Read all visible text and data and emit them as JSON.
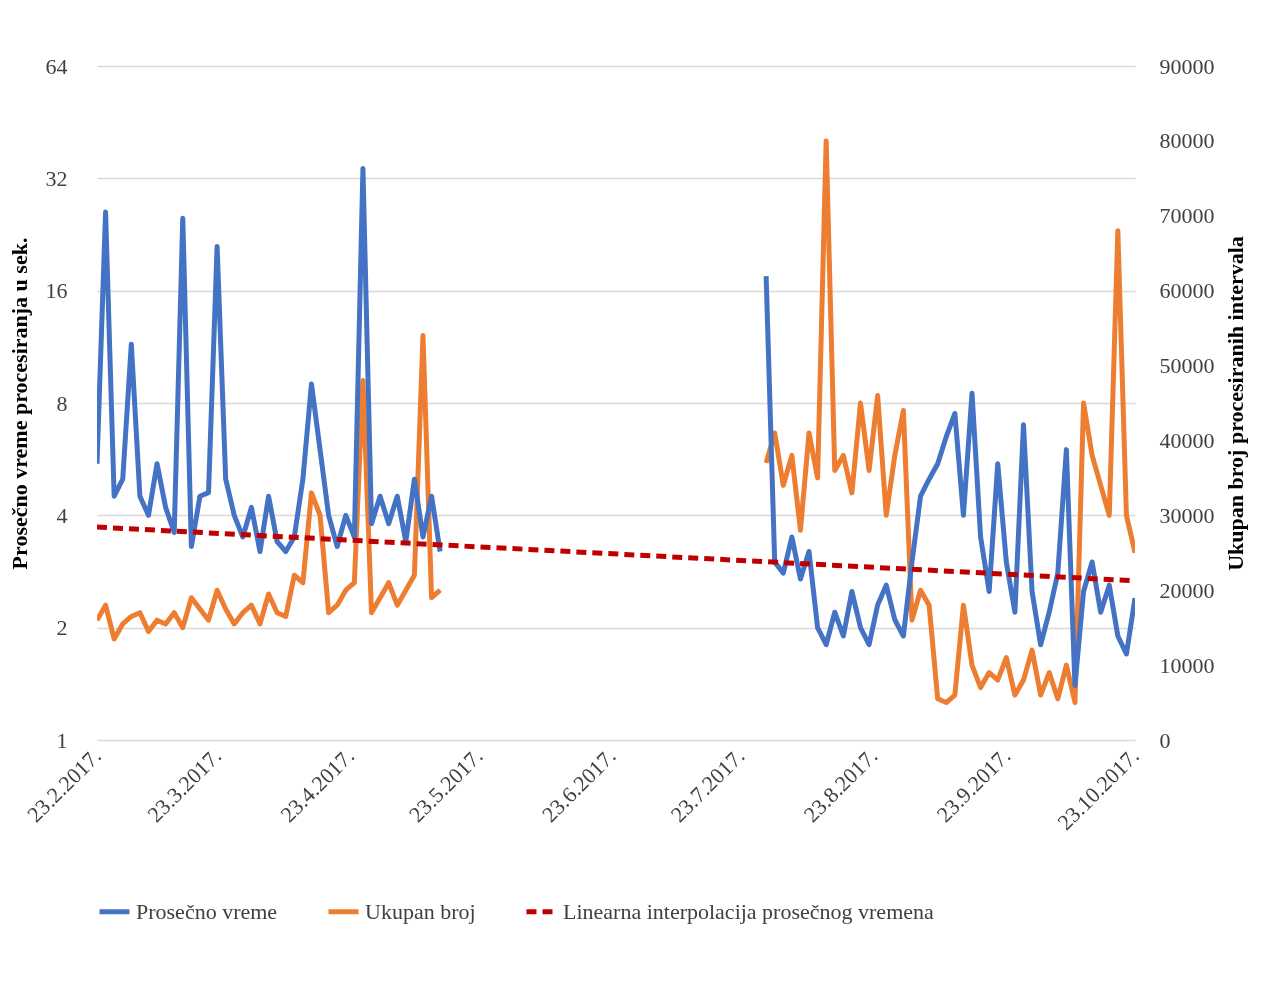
{
  "chart_data": {
    "type": "line",
    "ylabel": "Prosečno vreme procesiranja u sek.",
    "y2label": "Ukupan broj procesiranih intervala",
    "x": [
      "2017-02-23",
      "2017-02-25",
      "2017-02-27",
      "2017-03-01",
      "2017-03-03",
      "2017-03-05",
      "2017-03-07",
      "2017-03-09",
      "2017-03-11",
      "2017-03-13",
      "2017-03-15",
      "2017-03-17",
      "2017-03-19",
      "2017-03-21",
      "2017-03-23",
      "2017-03-25",
      "2017-03-27",
      "2017-03-29",
      "2017-03-31",
      "2017-04-02",
      "2017-04-04",
      "2017-04-06",
      "2017-04-08",
      "2017-04-10",
      "2017-04-12",
      "2017-04-14",
      "2017-04-16",
      "2017-04-18",
      "2017-04-20",
      "2017-04-22",
      "2017-04-24",
      "2017-04-26",
      "2017-04-28",
      "2017-04-30",
      "2017-05-02",
      "2017-05-04",
      "2017-05-06",
      "2017-05-08",
      "2017-05-10",
      "2017-05-12",
      "2017-05-14",
      "2017-06-20",
      "2017-07-29",
      "2017-07-31",
      "2017-08-02",
      "2017-08-04",
      "2017-08-06",
      "2017-08-08",
      "2017-08-10",
      "2017-08-12",
      "2017-08-14",
      "2017-08-16",
      "2017-08-18",
      "2017-08-20",
      "2017-08-22",
      "2017-08-24",
      "2017-08-26",
      "2017-08-28",
      "2017-08-30",
      "2017-09-01",
      "2017-09-03",
      "2017-09-05",
      "2017-09-07",
      "2017-09-09",
      "2017-09-11",
      "2017-09-13",
      "2017-09-15",
      "2017-09-17",
      "2017-09-19",
      "2017-09-21",
      "2017-09-23",
      "2017-09-25",
      "2017-09-27",
      "2017-09-29",
      "2017-10-01",
      "2017-10-03",
      "2017-10-05",
      "2017-10-07",
      "2017-10-09",
      "2017-10-11",
      "2017-10-13",
      "2017-10-15",
      "2017-10-17",
      "2017-10-19",
      "2017-10-21",
      "2017-10-23"
    ],
    "series": [
      {
        "name": "Prosečno vreme",
        "color": "#4472c4",
        "type": "line",
        "line_style": "solid",
        "values": [
          5.5,
          26,
          4.5,
          5,
          11.5,
          4.5,
          4,
          5.5,
          4.2,
          3.6,
          25,
          3.3,
          4.5,
          4.6,
          21,
          5,
          4,
          3.5,
          4.2,
          3.2,
          4.5,
          3.4,
          3.2,
          3.5,
          5,
          9,
          6,
          4,
          3.3,
          4,
          3.5,
          34,
          3.8,
          4.5,
          3.8,
          4.5,
          3.4,
          5,
          3.5,
          4.5,
          3.2,
          null,
          17.5,
          3,
          2.8,
          3.5,
          2.7,
          3.2,
          2,
          1.8,
          2.2,
          1.9,
          2.5,
          2,
          1.8,
          2.3,
          2.6,
          2.1,
          1.9,
          3,
          4.5,
          5,
          5.5,
          6.5,
          7.5,
          4,
          8.5,
          3.5,
          2.5,
          5.5,
          3,
          2.2,
          7,
          2.5,
          1.8,
          2.2,
          2.8,
          6,
          1.4,
          2.5,
          3,
          2.2,
          2.6,
          1.9,
          1.7,
          2.4
        ]
      },
      {
        "name": "Ukupan broj",
        "color": "#ed7d31",
        "type": "line",
        "line_style": "solid",
        "axis": "y2",
        "values": [
          16000,
          18000,
          13500,
          15500,
          16500,
          17000,
          14500,
          16000,
          15500,
          17000,
          15000,
          19000,
          17500,
          16000,
          20000,
          17500,
          15500,
          17000,
          18000,
          15500,
          19500,
          17000,
          16500,
          22000,
          21000,
          33000,
          30000,
          17000,
          18000,
          20000,
          21000,
          48000,
          17000,
          19000,
          21000,
          18000,
          20000,
          22000,
          54000,
          19000,
          20000,
          null,
          37000,
          41000,
          34000,
          38000,
          28000,
          41000,
          35000,
          80000,
          36000,
          38000,
          33000,
          45000,
          36000,
          46000,
          30000,
          38000,
          44000,
          16000,
          20000,
          18000,
          5500,
          5000,
          6000,
          18000,
          10000,
          7000,
          9000,
          8000,
          11000,
          6000,
          8000,
          12000,
          6000,
          9000,
          5500,
          10000,
          5000,
          45000,
          38000,
          34000,
          30000,
          68000,
          30000,
          25000
        ]
      },
      {
        "name": "Linearna interpolacija prosečnog vremena",
        "color": "#c00000",
        "type": "line",
        "line_style": "dashed",
        "x": [
          "2017-02-23",
          "2017-10-23"
        ],
        "values": [
          3.72,
          2.67
        ]
      }
    ],
    "xlim": [
      "2017-02-23",
      "2017-10-23"
    ],
    "xticks": [
      {
        "value": "2017-02-23",
        "label": "23.2.2017."
      },
      {
        "value": "2017-03-23",
        "label": "23.3.2017."
      },
      {
        "value": "2017-04-23",
        "label": "23.4.2017."
      },
      {
        "value": "2017-05-23",
        "label": "23.5.2017."
      },
      {
        "value": "2017-06-23",
        "label": "23.6.2017."
      },
      {
        "value": "2017-07-23",
        "label": "23.7.2017."
      },
      {
        "value": "2017-08-23",
        "label": "23.8.2017."
      },
      {
        "value": "2017-09-23",
        "label": "23.9.2017."
      },
      {
        "value": "2017-10-23",
        "label": "23.10.2017."
      }
    ],
    "ylim": [
      1,
      64
    ],
    "yticks": [
      1,
      2,
      4,
      8,
      16,
      32,
      64
    ],
    "log": "y",
    "y2lim": [
      0,
      90000
    ],
    "y2ticks": [
      0,
      10000,
      20000,
      30000,
      40000,
      50000,
      60000,
      70000,
      80000,
      90000
    ],
    "grid": "y",
    "legend": "bottom"
  }
}
